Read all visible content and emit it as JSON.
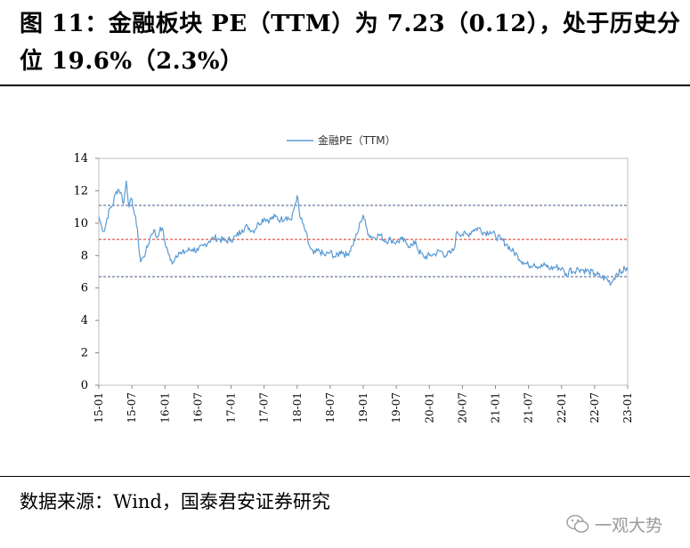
{
  "header": {
    "title": "图 11：金融板块 PE（TTM）为 7.23（0.12），处于历史分位 19.6%（2.3%）"
  },
  "chart_data": {
    "type": "line",
    "title": "",
    "legend": {
      "label": "金融PE（TTM）",
      "placement": "top-center"
    },
    "xlabel": "",
    "ylabel": "",
    "ylim": [
      0,
      14
    ],
    "yticks": [
      0,
      2,
      4,
      6,
      8,
      10,
      12,
      14
    ],
    "x_range": [
      0,
      96
    ],
    "x_ticks": [
      {
        "label": "15-01",
        "t": 0
      },
      {
        "label": "15-07",
        "t": 6
      },
      {
        "label": "16-01",
        "t": 12
      },
      {
        "label": "16-07",
        "t": 18
      },
      {
        "label": "17-01",
        "t": 24
      },
      {
        "label": "17-07",
        "t": 30
      },
      {
        "label": "18-01",
        "t": 36
      },
      {
        "label": "18-07",
        "t": 42
      },
      {
        "label": "19-01",
        "t": 48
      },
      {
        "label": "19-07",
        "t": 54
      },
      {
        "label": "20-01",
        "t": 60
      },
      {
        "label": "20-07",
        "t": 66
      },
      {
        "label": "21-01",
        "t": 72
      },
      {
        "label": "21-07",
        "t": 78
      },
      {
        "label": "22-01",
        "t": 84
      },
      {
        "label": "22-07",
        "t": 90
      },
      {
        "label": "23-01",
        "t": 96
      }
    ],
    "series": [
      {
        "name": "金融PE（TTM）",
        "color": "#5b9bd5",
        "points": [
          [
            0,
            10.4
          ],
          [
            0.5,
            9.8
          ],
          [
            1,
            9.5
          ],
          [
            1.5,
            10.3
          ],
          [
            2,
            10.9
          ],
          [
            2.5,
            11.1
          ],
          [
            3,
            11.8
          ],
          [
            3.5,
            12.1
          ],
          [
            4,
            11.9
          ],
          [
            4.5,
            11.2
          ],
          [
            5,
            12.6
          ],
          [
            5.5,
            11.0
          ],
          [
            6,
            11.5
          ],
          [
            6.5,
            10.5
          ],
          [
            7,
            9.7
          ],
          [
            7.3,
            8.3
          ],
          [
            7.6,
            7.6
          ],
          [
            8,
            7.9
          ],
          [
            8.5,
            8.2
          ],
          [
            9,
            8.7
          ],
          [
            9.5,
            9.3
          ],
          [
            10,
            9.6
          ],
          [
            10.5,
            9.1
          ],
          [
            11,
            9.5
          ],
          [
            11.5,
            9.7
          ],
          [
            12,
            8.8
          ],
          [
            12.5,
            8.3
          ],
          [
            13,
            7.7
          ],
          [
            13.5,
            7.6
          ],
          [
            14,
            8.0
          ],
          [
            14.5,
            8.2
          ],
          [
            15,
            8.1
          ],
          [
            16,
            8.3
          ],
          [
            17,
            8.4
          ],
          [
            18,
            8.3
          ],
          [
            19,
            8.6
          ],
          [
            20,
            8.9
          ],
          [
            21,
            9.1
          ],
          [
            22,
            9.0
          ],
          [
            23,
            8.9
          ],
          [
            24,
            9.0
          ],
          [
            25,
            9.2
          ],
          [
            26,
            9.6
          ],
          [
            27,
            9.8
          ],
          [
            28,
            9.5
          ],
          [
            29,
            10.0
          ],
          [
            30,
            10.3
          ],
          [
            31,
            10.2
          ],
          [
            32,
            10.4
          ],
          [
            33,
            10.2
          ],
          [
            34,
            10.4
          ],
          [
            35,
            10.2
          ],
          [
            35.5,
            11.0
          ],
          [
            36,
            11.7
          ],
          [
            36.5,
            10.4
          ],
          [
            37,
            10.0
          ],
          [
            37.5,
            9.5
          ],
          [
            38,
            8.8
          ],
          [
            38.5,
            8.4
          ],
          [
            39,
            8.1
          ],
          [
            40,
            8.3
          ],
          [
            41,
            8.0
          ],
          [
            42,
            8.2
          ],
          [
            43,
            7.9
          ],
          [
            44,
            8.3
          ],
          [
            45,
            8.0
          ],
          [
            46,
            8.6
          ],
          [
            47,
            9.4
          ],
          [
            47.5,
            10.1
          ],
          [
            48,
            10.5
          ],
          [
            48.5,
            9.8
          ],
          [
            49,
            9.3
          ],
          [
            50,
            9.1
          ],
          [
            51,
            9.3
          ],
          [
            52,
            8.9
          ],
          [
            53,
            9.0
          ],
          [
            54,
            8.8
          ],
          [
            55,
            9.0
          ],
          [
            56,
            8.7
          ],
          [
            57,
            8.6
          ],
          [
            57.5,
            8.9
          ],
          [
            58,
            8.3
          ],
          [
            59,
            7.9
          ],
          [
            60,
            8.0
          ],
          [
            61,
            8.1
          ],
          [
            62,
            8.3
          ],
          [
            63,
            8.0
          ],
          [
            64,
            8.2
          ],
          [
            64.5,
            8.4
          ],
          [
            65,
            9.5
          ],
          [
            66,
            9.3
          ],
          [
            67,
            9.3
          ],
          [
            68,
            9.6
          ],
          [
            69,
            9.7
          ],
          [
            70,
            9.4
          ],
          [
            71,
            9.5
          ],
          [
            72,
            9.2
          ],
          [
            73,
            9.0
          ],
          [
            74,
            8.7
          ],
          [
            75,
            8.3
          ],
          [
            76,
            8.0
          ],
          [
            77,
            7.6
          ],
          [
            78,
            7.4
          ],
          [
            79,
            7.5
          ],
          [
            80,
            7.3
          ],
          [
            81,
            7.4
          ],
          [
            82,
            7.2
          ],
          [
            83,
            7.3
          ],
          [
            84,
            7.2
          ],
          [
            84.5,
            7.0
          ],
          [
            85,
            6.7
          ],
          [
            85.5,
            7.2
          ],
          [
            86,
            7.0
          ],
          [
            87,
            7.2
          ],
          [
            88,
            7.1
          ],
          [
            89,
            7.0
          ],
          [
            90,
            6.9
          ],
          [
            91,
            6.7
          ],
          [
            92,
            6.6
          ],
          [
            93,
            6.3
          ],
          [
            93.5,
            6.6
          ],
          [
            94,
            6.9
          ],
          [
            95,
            7.0
          ],
          [
            95.5,
            7.2
          ],
          [
            96,
            7.1
          ]
        ]
      }
    ],
    "reference_lines": [
      {
        "name": "upper",
        "value": 11.1,
        "color": "#4a5a8c"
      },
      {
        "name": "mean",
        "value": 9.0,
        "color": "#e0301e"
      },
      {
        "name": "lower",
        "value": 6.7,
        "color": "#4a5a8c"
      }
    ]
  },
  "footer": {
    "source": "数据来源：Wind，国泰君安证券研究",
    "watermark": "一观大势",
    "watermark_icon": "wechat-icon"
  }
}
